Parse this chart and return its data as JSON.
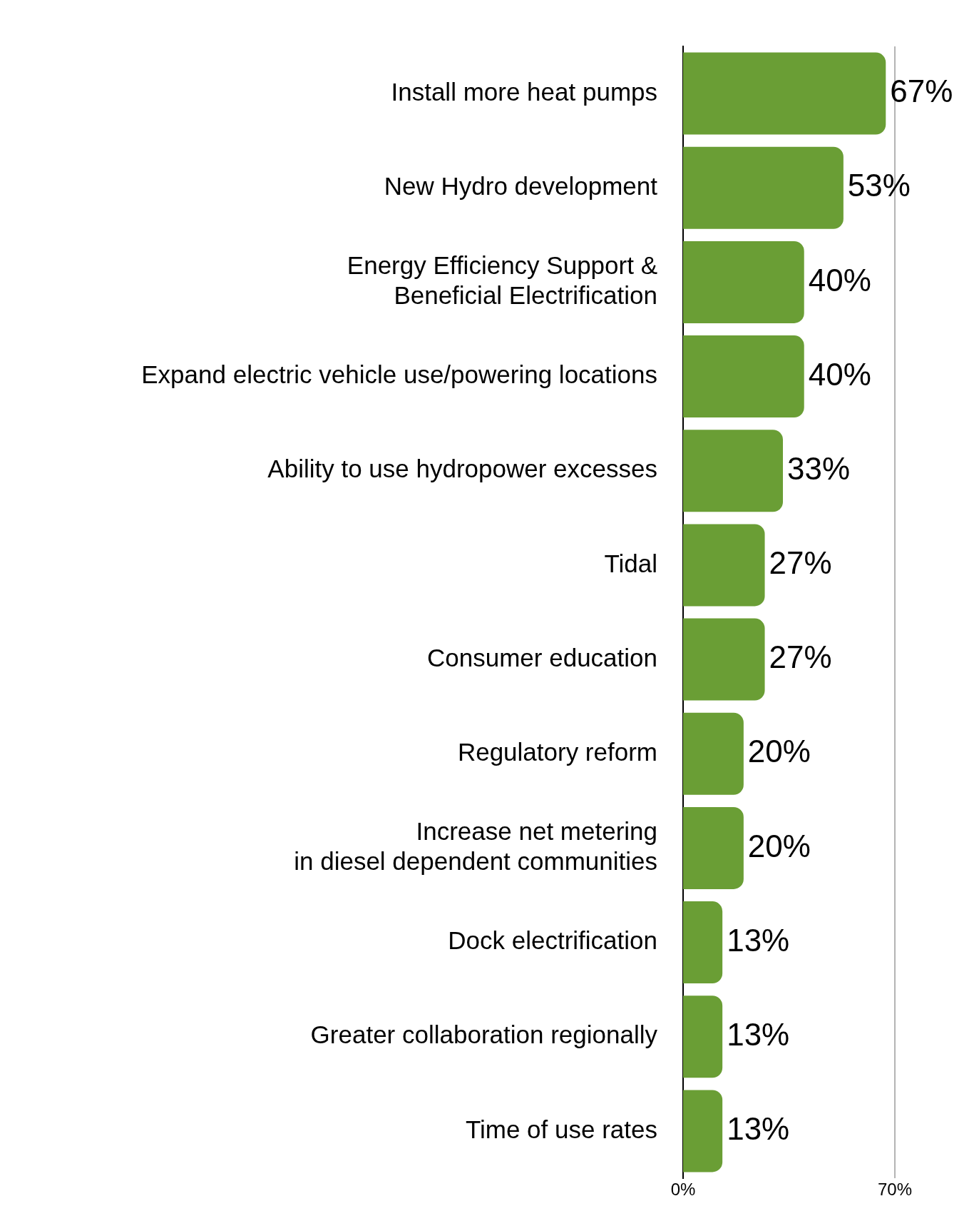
{
  "chart_data": {
    "type": "bar",
    "orientation": "horizontal",
    "categories": [
      "Install more heat pumps",
      "New Hydro development",
      "Energy Efficiency Support &\nBeneficial Electrification",
      "Expand electric vehicle use/powering locations",
      "Ability to use hydropower excesses",
      "Tidal",
      "Consumer education",
      "Regulatory reform",
      "Increase net metering\nin diesel dependent communities",
      "Dock electrification",
      "Greater collaboration regionally",
      "Time of use rates"
    ],
    "values": [
      67,
      53,
      40,
      40,
      33,
      27,
      27,
      20,
      20,
      13,
      13,
      13
    ],
    "value_labels": [
      "67%",
      "53%",
      "40%",
      "40%",
      "33%",
      "27%",
      "27%",
      "20%",
      "20%",
      "13%",
      "13%",
      "13%"
    ],
    "color": "#6a9e35",
    "xlim": [
      0,
      70
    ],
    "xticks": [
      {
        "value": 0,
        "label": "0%"
      },
      {
        "value": 70,
        "label": "70%"
      }
    ],
    "ref_lines": [
      {
        "axis": "x",
        "value": 70,
        "color": "#b4b4b4"
      }
    ],
    "legend": false
  }
}
